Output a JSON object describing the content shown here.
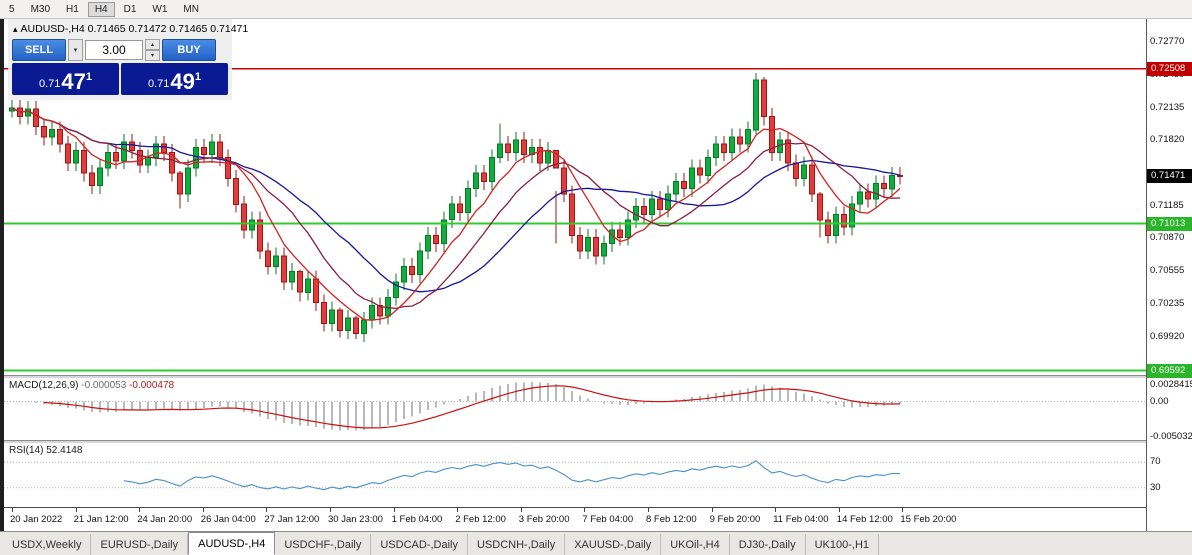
{
  "toolbar": {
    "timeframes": [
      "5",
      "M30",
      "H1",
      "H4",
      "D1",
      "W1",
      "MN"
    ],
    "active": "H4"
  },
  "chart": {
    "collapse_arrow": "▴",
    "symbol_period": "AUDUSD-,H4",
    "ohlc": "0.71465 0.71472 0.71465 0.71471"
  },
  "trade_panel": {
    "sell_label": "SELL",
    "buy_label": "BUY",
    "volume": "3.00",
    "sell_price": {
      "prefix": "0.71",
      "big": "47",
      "pip": "1"
    },
    "buy_price": {
      "prefix": "0.71",
      "big": "49",
      "pip": "1"
    }
  },
  "price_scale": {
    "labels": [
      "0.72770",
      "0.72450",
      "0.72135",
      "0.71820",
      "0.71185",
      "0.70870",
      "0.70555",
      "0.70235",
      "0.69920"
    ],
    "badges": [
      {
        "name": "resistance",
        "text": "0.72508",
        "value": 0.72508,
        "bg": "#c00000",
        "fg": "#ffffff"
      },
      {
        "name": "current-price",
        "text": "0.71471",
        "value": 0.71471,
        "bg": "#000000",
        "fg": "#ffffff"
      },
      {
        "name": "support",
        "text": "0.71013",
        "value": 0.71013,
        "bg": "#2bb52b",
        "fg": "#ffffff"
      },
      {
        "name": "support-low",
        "text": "0.69592",
        "value": 0.69592,
        "bg": "#2bb52b",
        "fg": "#ffffff"
      }
    ]
  },
  "macd": {
    "label": "MACD(12,26,9)",
    "value_main": "-0.000053",
    "value_signal": "-0.000478",
    "scale_labels": [
      {
        "text": "0.0028415",
        "value": 0.0028415
      },
      {
        "text": "0.00",
        "value": 0
      },
      {
        "text": "-0.0050325",
        "value": -0.0050325
      }
    ]
  },
  "rsi": {
    "label": "RSI(14)",
    "value": "52.4148",
    "levels": [
      70,
      30
    ]
  },
  "time_axis": {
    "labels": [
      "20 Jan 2022",
      "21 Jan 12:00",
      "24 Jan 20:00",
      "26 Jan 04:00",
      "27 Jan 12:00",
      "30 Jan 23:00",
      "1 Feb 04:00",
      "2 Feb 12:00",
      "3 Feb 20:00",
      "7 Feb 04:00",
      "8 Feb 12:00",
      "9 Feb 20:00",
      "11 Feb 04:00",
      "14 Feb 12:00",
      "15 Feb 20:00"
    ]
  },
  "tabs": {
    "items": [
      "USDX,Weekly",
      "EURUSD-,Daily",
      "AUDUSD-,H4",
      "USDCHF-,Daily",
      "USDCAD-,Daily",
      "USDCNH-,Daily",
      "XAUUSD-,Daily",
      "UKOil-,H4",
      "DJ30-,Daily",
      "UK100-,H1"
    ],
    "active": "AUDUSD-,H4"
  },
  "chart_data": {
    "type": "candlestick",
    "title": "AUDUSD-,H4",
    "y_range": [
      0.6955,
      0.7299
    ],
    "levels": {
      "resistance": 0.72508,
      "support": 0.71013,
      "support_low": 0.69592,
      "current": 0.71471
    },
    "first_open": 0.721,
    "default_wick": 0.0008,
    "closes": [
      0.7213,
      0.7205,
      0.7212,
      0.7195,
      0.7185,
      0.7192,
      0.7178,
      0.716,
      0.7172,
      0.715,
      0.7138,
      0.7155,
      0.717,
      0.7162,
      0.718,
      0.7172,
      0.7158,
      0.7165,
      0.7178,
      0.717,
      0.715,
      0.713,
      0.7155,
      0.7175,
      0.7168,
      0.718,
      0.7165,
      0.7145,
      0.712,
      0.7095,
      0.7105,
      0.7075,
      0.706,
      0.707,
      0.7045,
      0.7055,
      0.7035,
      0.7048,
      0.7025,
      0.7005,
      0.7018,
      0.6998,
      0.701,
      0.6995,
      0.7008,
      0.7022,
      0.7012,
      0.703,
      0.7045,
      0.706,
      0.7052,
      0.7075,
      0.709,
      0.7082,
      0.7105,
      0.712,
      0.7112,
      0.7135,
      0.715,
      0.7142,
      0.7165,
      0.7178,
      0.717,
      0.7182,
      0.7168,
      0.7175,
      0.716,
      0.7172,
      0.7155,
      0.713,
      0.709,
      0.7075,
      0.7088,
      0.707,
      0.7082,
      0.7095,
      0.7088,
      0.7105,
      0.7118,
      0.711,
      0.7125,
      0.7115,
      0.713,
      0.7142,
      0.7135,
      0.7155,
      0.7148,
      0.7165,
      0.7178,
      0.717,
      0.7185,
      0.7178,
      0.7192,
      0.724,
      0.7205,
      0.717,
      0.7182,
      0.716,
      0.7145,
      0.7158,
      0.713,
      0.7105,
      0.709,
      0.711,
      0.7098,
      0.712,
      0.7132,
      0.7125,
      0.714,
      0.7135,
      0.7148,
      0.7147
    ],
    "wick_overrides": {
      "0": [
        0.7221,
        0.7204
      ],
      "21": [
        0.7152,
        0.7116
      ],
      "36": [
        0.7057,
        0.7026
      ],
      "41": [
        0.702,
        0.6991
      ],
      "43": [
        0.7012,
        0.699
      ],
      "61": [
        0.7198,
        0.716
      ],
      "68": [
        0.7133,
        0.7082
      ],
      "93": [
        0.7247,
        0.7188
      ],
      "94": [
        0.7243,
        0.7196
      ],
      "101": [
        0.7132,
        0.7088
      ]
    },
    "moving_averages": [
      {
        "type": "sma",
        "period": 21,
        "color": "#16169c"
      },
      {
        "type": "sma",
        "period": 13,
        "color": "#8b1e3f"
      },
      {
        "type": "sma",
        "period": 7,
        "color": "#d42222"
      }
    ],
    "macd_params": [
      12,
      26,
      9
    ],
    "rsi_period": 14,
    "readouts": {
      "macd_main": -5.3e-05,
      "macd_signal": -0.000478,
      "rsi": 52.4148
    },
    "x_tick_labels": [
      "20 Jan 2022",
      "21 Jan 12:00",
      "24 Jan 20:00",
      "26 Jan 04:00",
      "27 Jan 12:00",
      "30 Jan 23:00",
      "1 Feb 04:00",
      "2 Feb 12:00",
      "3 Feb 20:00",
      "7 Feb 04:00",
      "8 Feb 12:00",
      "9 Feb 20:00",
      "11 Feb 04:00",
      "14 Feb 12:00",
      "15 Feb 20:00"
    ],
    "colors": {
      "bull": "#0fae3c",
      "bull_border": "#077a27",
      "bear": "#e23b3b",
      "bear_border": "#a31515",
      "histogram": "#b9b9b9",
      "macd_signal": "#cc1111",
      "rsi_line": "#4a90cc",
      "resistance_line": "#cc0000",
      "support_line": "#2fcb2f"
    }
  }
}
